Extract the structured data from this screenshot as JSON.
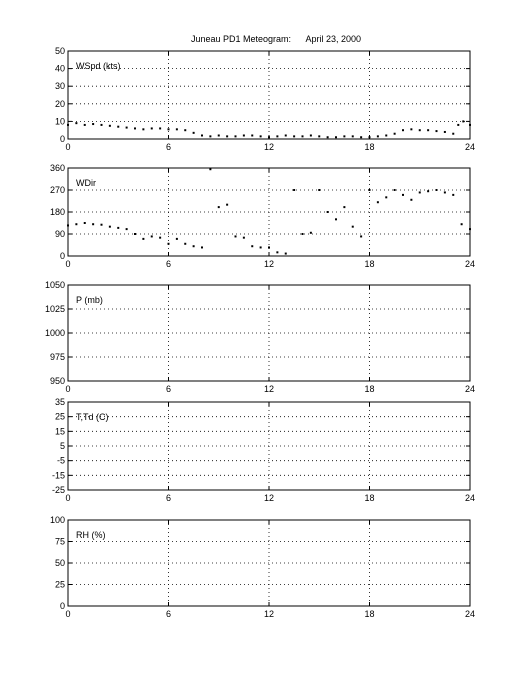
{
  "title": "Juneau PD1 Meteogram:      April 23, 2000",
  "chart_data": [
    {
      "type": "scatter",
      "label": "WSpd (kts)",
      "xlim": [
        0,
        24
      ],
      "ylim": [
        0,
        50
      ],
      "xticks": [
        "0",
        "6",
        "12",
        "18",
        "24"
      ],
      "yticks": [
        "0",
        "10",
        "20",
        "30",
        "40",
        "50"
      ],
      "grid": true,
      "series": [
        {
          "x": [
            0,
            0.5,
            1,
            1.5,
            2,
            2.5,
            3,
            3.5,
            4,
            4.5,
            5,
            5.5,
            6,
            6.5,
            7,
            7.5,
            8,
            8.5,
            9,
            9.5,
            10,
            10.5,
            11,
            11.5,
            12,
            12.5,
            13,
            13.5,
            14,
            14.5,
            15,
            15.5,
            16,
            16.5,
            17,
            17.5,
            18,
            18.5,
            19,
            19.5,
            20,
            20.5,
            21,
            21.5,
            22,
            22.5,
            23,
            23.3,
            23.6,
            24
          ],
          "y": [
            8,
            9,
            8,
            8.5,
            8,
            7.5,
            7,
            6.5,
            6,
            5.5,
            6,
            6,
            5.5,
            5.5,
            5,
            3.5,
            2,
            1.5,
            2,
            1.5,
            1.5,
            2,
            2,
            1.5,
            1,
            1.5,
            2,
            1.5,
            1.5,
            2,
            1.5,
            1,
            1,
            1.5,
            1.5,
            1,
            1,
            1.5,
            2,
            3,
            5,
            5.5,
            5,
            5,
            4.5,
            4,
            3,
            8,
            10,
            8
          ]
        }
      ]
    },
    {
      "type": "scatter",
      "label": "WDir",
      "xlim": [
        0,
        24
      ],
      "ylim": [
        0,
        360
      ],
      "xticks": [
        "0",
        "6",
        "12",
        "18",
        "24"
      ],
      "yticks": [
        "0",
        "90",
        "180",
        "270",
        "360"
      ],
      "grid": true,
      "series": [
        {
          "x": [
            0,
            0.5,
            1,
            1.5,
            2,
            2.5,
            3,
            3.5,
            4,
            4.5,
            5,
            5.5,
            6,
            6.5,
            7,
            7.5,
            8,
            8.5,
            9,
            9.5,
            10,
            10.5,
            11,
            11.5,
            12,
            12.5,
            13,
            13.5,
            14,
            14.5,
            15,
            15.5,
            16,
            16.5,
            17,
            17.5,
            18,
            18.5,
            19,
            19.5,
            20,
            20.5,
            21,
            21.5,
            22,
            22.5,
            23,
            23.5,
            24
          ],
          "y": [
            125,
            130,
            135,
            130,
            128,
            120,
            115,
            110,
            90,
            70,
            80,
            75,
            50,
            70,
            50,
            40,
            35,
            355,
            200,
            210,
            80,
            75,
            40,
            35,
            35,
            15,
            10,
            270,
            90,
            95,
            270,
            180,
            150,
            200,
            120,
            80,
            270,
            220,
            240,
            270,
            250,
            230,
            260,
            265,
            270,
            260,
            250,
            130,
            110
          ]
        }
      ]
    },
    {
      "type": "scatter",
      "label": "P (mb)",
      "xlim": [
        0,
        24
      ],
      "ylim": [
        950,
        1050
      ],
      "xticks": [
        "0",
        "6",
        "12",
        "18",
        "24"
      ],
      "yticks": [
        "950",
        "975",
        "1000",
        "1025",
        "1050"
      ],
      "grid": true,
      "series": []
    },
    {
      "type": "scatter",
      "label": "T,Td (C)",
      "xlim": [
        0,
        24
      ],
      "ylim": [
        -25,
        35
      ],
      "xticks": [
        "0",
        "6",
        "12",
        "18",
        "24"
      ],
      "yticks": [
        "-25",
        "-15",
        "-5",
        "5",
        "15",
        "25",
        "35"
      ],
      "grid": true,
      "series": []
    },
    {
      "type": "scatter",
      "label": "RH (%)",
      "xlim": [
        0,
        24
      ],
      "ylim": [
        0,
        100
      ],
      "xticks": [
        "0",
        "6",
        "12",
        "18",
        "24"
      ],
      "yticks": [
        "0",
        "25",
        "50",
        "75",
        "100"
      ],
      "grid": true,
      "series": []
    }
  ]
}
